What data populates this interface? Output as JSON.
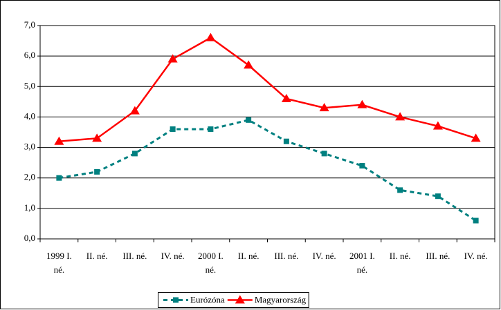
{
  "chart_data": {
    "type": "line",
    "categories": [
      "1999 I.\nné.",
      "II. né.",
      "III. né.",
      "IV. né.",
      "2000 I.\nné.",
      "II. né.",
      "III. né.",
      "IV. né.",
      "2001 I.\nné.",
      "II. né.",
      "III. né.",
      "IV. né."
    ],
    "series": [
      {
        "name": "Eurózóna",
        "color": "#008080",
        "dashed": true,
        "marker": "square",
        "values": [
          2.0,
          2.2,
          2.8,
          3.6,
          3.6,
          3.9,
          3.2,
          2.8,
          2.4,
          1.6,
          1.4,
          0.6
        ]
      },
      {
        "name": "Magyarország",
        "color": "#ff0000",
        "dashed": false,
        "marker": "triangle",
        "values": [
          3.2,
          3.3,
          4.2,
          5.9,
          6.6,
          5.7,
          4.6,
          4.3,
          4.4,
          4.0,
          3.7,
          3.3
        ]
      }
    ],
    "ylim": [
      0,
      7
    ],
    "yticks": [
      {
        "value": 0,
        "label": "0,0"
      },
      {
        "value": 1,
        "label": "1,0"
      },
      {
        "value": 2,
        "label": "2,0"
      },
      {
        "value": 3,
        "label": "3,0"
      },
      {
        "value": 4,
        "label": "4,0"
      },
      {
        "value": 5,
        "label": "5,0"
      },
      {
        "value": 6,
        "label": "6,0"
      },
      {
        "value": 7,
        "label": "7,0"
      }
    ],
    "grid": true,
    "legend": "bottom"
  }
}
